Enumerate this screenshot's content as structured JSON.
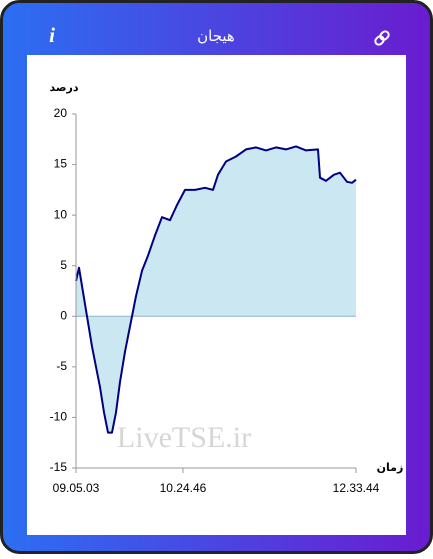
{
  "header": {
    "title": "هیجان",
    "info_icon": "i"
  },
  "chart_data": {
    "type": "line",
    "y_label": "درصد",
    "x_label": "زمان",
    "watermark": "LiveTSE.ir",
    "x": [
      32703,
      32837,
      32971,
      33195,
      33419,
      33642,
      33776,
      33955,
      34134,
      34313,
      34492,
      34671,
      34894,
      35118,
      35386,
      35655,
      35923,
      36236,
      36549,
      36907,
      37220,
      37578,
      38025,
      38472,
      38829,
      39053,
      39411,
      39858,
      40305,
      40752,
      41200,
      41647,
      42094,
      42541,
      42989,
      43525,
      43615,
      43883,
      44241,
      44509,
      44822,
      45046,
      45224
    ],
    "series": [
      {
        "color": "#000080",
        "fill": "#cbe7f1",
        "values": [
          3.5,
          4.8,
          3,
          0,
          -3,
          -5.5,
          -7,
          -9.5,
          -11.5,
          -11.5,
          -9.5,
          -6.5,
          -3.5,
          -1,
          2,
          4.5,
          6,
          8,
          9.8,
          9.5,
          11,
          12.5,
          12.5,
          12.7,
          12.5,
          14,
          15.3,
          15.8,
          16.5,
          16.7,
          16.4,
          16.7,
          16.5,
          16.8,
          16.4,
          16.5,
          13.7,
          13.4,
          14,
          14.2,
          13.3,
          13.2,
          13.5
        ]
      }
    ],
    "xlim": [
      32703,
      45224
    ],
    "xticks": [
      {
        "value": 32703,
        "label": "09.05.03"
      },
      {
        "value": 37486,
        "label": "10.24.46"
      },
      {
        "value": 45224,
        "label": "12.33.44"
      }
    ],
    "ylim": [
      -15,
      20
    ],
    "yticks": [
      -15,
      -10,
      -5,
      0,
      5,
      10,
      15,
      20
    ]
  }
}
